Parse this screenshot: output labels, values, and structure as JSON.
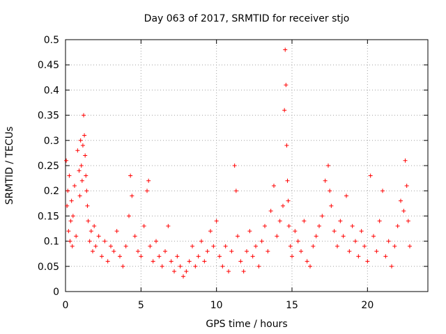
{
  "chart_data": {
    "type": "scatter",
    "title": "Day 063 of 2017, SRMTID for receiver stjo",
    "xlabel": "GPS time / hours",
    "ylabel": "SRMTID / TECUs",
    "xlim": [
      0,
      24
    ],
    "ylim": [
      0,
      0.5
    ],
    "xticks": [
      0,
      5,
      10,
      15,
      20
    ],
    "xtick_labels": [
      "0",
      "5",
      "10",
      "15",
      "20"
    ],
    "yticks": [
      0,
      0.05,
      0.1,
      0.15,
      0.2,
      0.25,
      0.3,
      0.35,
      0.4,
      0.45,
      0.5
    ],
    "ytick_labels": [
      "0",
      "0.05",
      "0.1",
      "0.15",
      "0.2",
      "0.25",
      "0.3",
      "0.35",
      "0.4",
      "0.45",
      "0.5"
    ],
    "grid": true,
    "marker": "+",
    "color": "#ff0000",
    "series": [
      {
        "name": "SRMTID",
        "x": [
          0.05,
          0.1,
          0.15,
          0.2,
          0.25,
          0.3,
          0.35,
          0.4,
          0.45,
          0.5,
          0.6,
          0.7,
          0.8,
          0.9,
          0.95,
          1.0,
          1.05,
          1.1,
          1.15,
          1.2,
          1.25,
          1.3,
          1.35,
          1.4,
          1.45,
          1.5,
          1.6,
          1.7,
          1.8,
          1.9,
          2.0,
          2.2,
          2.4,
          2.6,
          2.8,
          3.0,
          3.2,
          3.4,
          3.6,
          3.8,
          4.0,
          4.2,
          4.3,
          4.4,
          4.6,
          4.8,
          5.0,
          5.2,
          5.4,
          5.5,
          5.6,
          5.8,
          6.0,
          6.2,
          6.4,
          6.6,
          6.8,
          7.0,
          7.2,
          7.4,
          7.6,
          7.8,
          8.0,
          8.2,
          8.4,
          8.6,
          8.8,
          9.0,
          9.2,
          9.4,
          9.6,
          9.8,
          10.0,
          10.2,
          10.4,
          10.6,
          10.8,
          11.0,
          11.2,
          11.3,
          11.4,
          11.6,
          11.8,
          12.0,
          12.2,
          12.4,
          12.6,
          12.8,
          13.0,
          13.2,
          13.4,
          13.6,
          13.8,
          14.0,
          14.2,
          14.4,
          14.5,
          14.55,
          14.6,
          14.65,
          14.7,
          14.75,
          14.8,
          14.9,
          15.0,
          15.2,
          15.4,
          15.6,
          15.8,
          16.0,
          16.2,
          16.4,
          16.6,
          16.8,
          17.0,
          17.2,
          17.4,
          17.5,
          17.6,
          17.8,
          18.0,
          18.2,
          18.4,
          18.6,
          18.8,
          19.0,
          19.2,
          19.4,
          19.6,
          19.8,
          20.0,
          20.2,
          20.4,
          20.6,
          20.8,
          21.0,
          21.2,
          21.4,
          21.6,
          21.8,
          22.0,
          22.2,
          22.4,
          22.5,
          22.6,
          22.7,
          22.8
        ],
        "y": [
          0.26,
          0.17,
          0.2,
          0.12,
          0.23,
          0.1,
          0.14,
          0.18,
          0.09,
          0.15,
          0.21,
          0.11,
          0.28,
          0.24,
          0.19,
          0.3,
          0.25,
          0.22,
          0.29,
          0.35,
          0.31,
          0.27,
          0.23,
          0.2,
          0.17,
          0.14,
          0.1,
          0.12,
          0.08,
          0.13,
          0.09,
          0.11,
          0.07,
          0.1,
          0.06,
          0.09,
          0.08,
          0.12,
          0.07,
          0.05,
          0.09,
          0.15,
          0.23,
          0.19,
          0.11,
          0.08,
          0.07,
          0.13,
          0.2,
          0.22,
          0.09,
          0.06,
          0.1,
          0.07,
          0.05,
          0.08,
          0.13,
          0.06,
          0.04,
          0.07,
          0.05,
          0.03,
          0.04,
          0.06,
          0.09,
          0.05,
          0.07,
          0.1,
          0.06,
          0.08,
          0.12,
          0.09,
          0.14,
          0.07,
          0.05,
          0.09,
          0.04,
          0.08,
          0.25,
          0.2,
          0.11,
          0.06,
          0.04,
          0.08,
          0.12,
          0.07,
          0.09,
          0.05,
          0.1,
          0.13,
          0.08,
          0.16,
          0.21,
          0.11,
          0.14,
          0.17,
          0.36,
          0.48,
          0.41,
          0.29,
          0.22,
          0.18,
          0.13,
          0.09,
          0.07,
          0.12,
          0.1,
          0.08,
          0.14,
          0.06,
          0.05,
          0.09,
          0.11,
          0.13,
          0.15,
          0.22,
          0.25,
          0.2,
          0.17,
          0.12,
          0.09,
          0.14,
          0.11,
          0.19,
          0.08,
          0.13,
          0.1,
          0.07,
          0.12,
          0.09,
          0.06,
          0.23,
          0.11,
          0.08,
          0.14,
          0.2,
          0.07,
          0.1,
          0.05,
          0.09,
          0.13,
          0.18,
          0.16,
          0.26,
          0.21,
          0.14,
          0.09
        ]
      }
    ]
  }
}
